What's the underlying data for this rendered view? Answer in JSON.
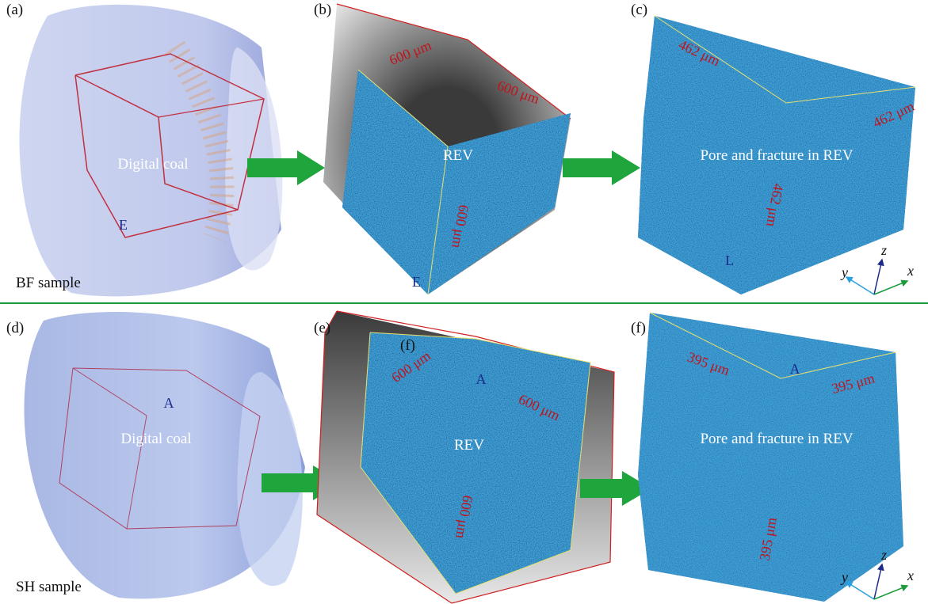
{
  "panels": [
    {
      "label": "(a)",
      "texts": [
        "Digital coal",
        "E"
      ]
    },
    {
      "label": "(b)",
      "texts": [
        "600 μm",
        "600 μm",
        "REV",
        "600 μm",
        "E"
      ]
    },
    {
      "label": "(c)",
      "texts": [
        "462 μm",
        "462 μm",
        "Pore and fracture in REV",
        "462 μm",
        "L"
      ]
    },
    {
      "label": "(d)",
      "texts": [
        "Digital coal",
        "A"
      ]
    },
    {
      "label": "(e)",
      "texts": [
        "(f)",
        "600 μm",
        "A",
        "600 μm",
        "REV",
        "600 μm"
      ]
    },
    {
      "label": "(f)",
      "texts": [
        "395 μm",
        "A",
        "395 μm",
        "Pore and fracture in REV",
        "395 μm"
      ]
    }
  ],
  "samples": [
    "BF sample",
    "SH sample"
  ],
  "axes": [
    [
      "y",
      "z",
      "x"
    ],
    [
      "y",
      "z",
      "x"
    ]
  ]
}
